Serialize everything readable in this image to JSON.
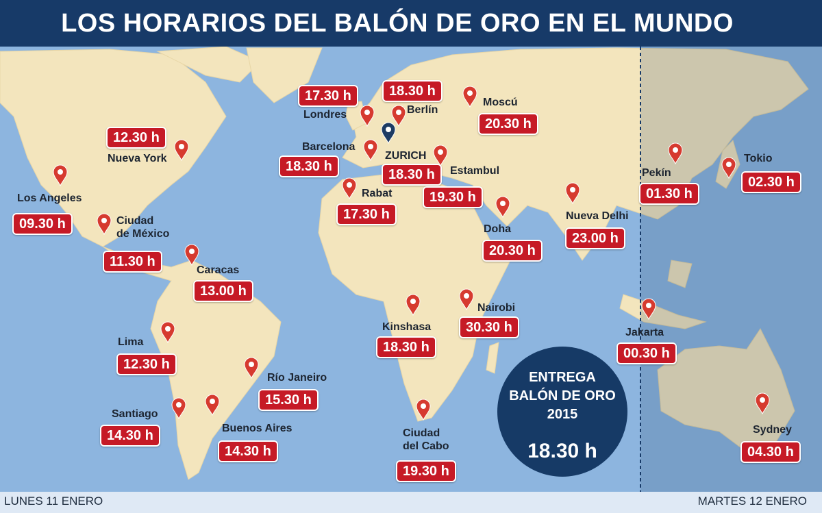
{
  "header": {
    "title": "LOS HORARIOS DEL BALÓN DE ORO EN EL MUNDO"
  },
  "cities": [
    {
      "name": "Londres",
      "time": "17.30 h"
    },
    {
      "name": "Berlín",
      "time": "18.30 h"
    },
    {
      "name": "Moscú",
      "time": "20.30 h"
    },
    {
      "name": "Nueva York",
      "time": "12.30 h"
    },
    {
      "name": "Barcelona",
      "time": "18.30 h"
    },
    {
      "name": "ZURICH",
      "time": "18.30 h"
    },
    {
      "name": "Estambul",
      "time": "19.30 h"
    },
    {
      "name": "Rabat",
      "time": "17.30 h"
    },
    {
      "name": "Los Angeles",
      "time": "09.30 h"
    },
    {
      "name": "Ciudad\nde México",
      "time": "11.30 h"
    },
    {
      "name": "Caracas",
      "time": "13.00 h"
    },
    {
      "name": "Doha",
      "time": "20.30 h"
    },
    {
      "name": "Nueva Delhi",
      "time": "23.00 h"
    },
    {
      "name": "Pekín",
      "time": "01.30 h"
    },
    {
      "name": "Tokio",
      "time": "02.30 h"
    },
    {
      "name": "Lima",
      "time": "12.30 h"
    },
    {
      "name": "Kinshasa",
      "time": "18.30 h"
    },
    {
      "name": "Nairobi",
      "time": "30.30 h"
    },
    {
      "name": "Jakarta",
      "time": "00.30 h"
    },
    {
      "name": "Río Janeiro",
      "time": "15.30 h"
    },
    {
      "name": "Santiago",
      "time": "14.30 h"
    },
    {
      "name": "Buenos Aires",
      "time": "14.30 h"
    },
    {
      "name": "Ciudad\ndel Cabo",
      "time": "19.30 h"
    },
    {
      "name": "Sydney",
      "time": "04.30 h"
    }
  ],
  "badge": {
    "label": "ENTREGA BALÓN DE ORO 2015",
    "time": "18.30 h"
  },
  "footer": {
    "left": "LUNES 11 ENERO",
    "right": "MARTES 12 ENERO"
  }
}
